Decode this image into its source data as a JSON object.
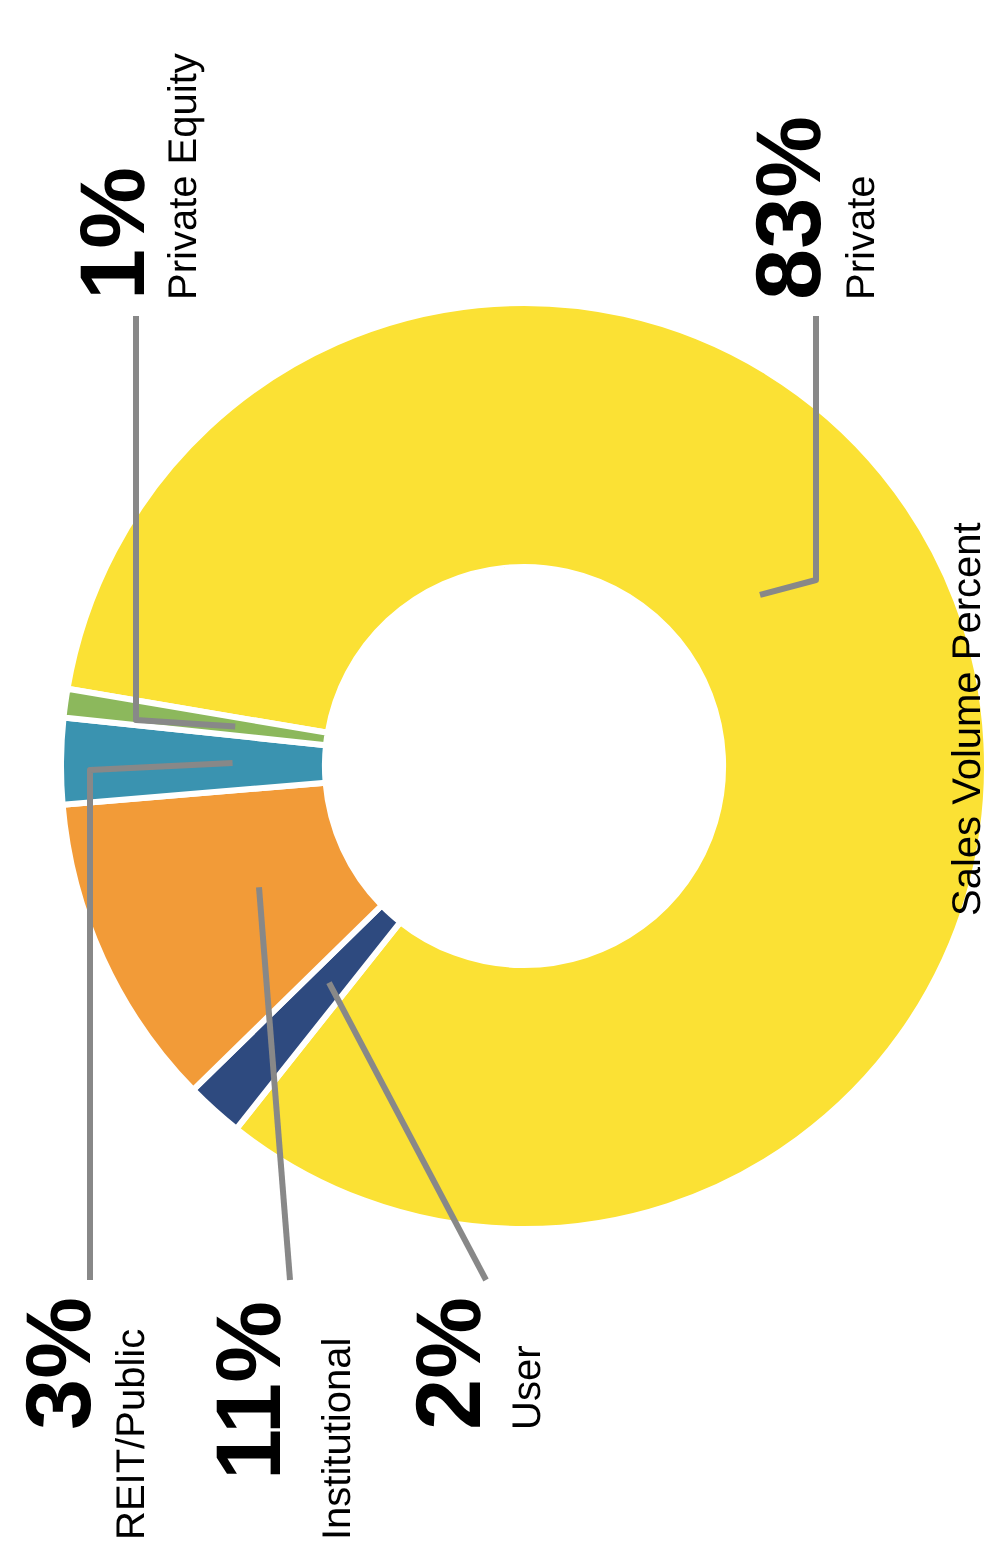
{
  "chart_data": {
    "type": "donut",
    "title": "Sales Volume Percent",
    "categories": [
      "Private",
      "User",
      "Institutional",
      "REIT/Public",
      "Private Equity"
    ],
    "values": [
      83,
      2,
      11,
      3,
      1
    ],
    "value_labels": [
      "83%",
      "2%",
      "11%",
      "3%",
      "1%"
    ],
    "colors": [
      "#fbe134",
      "#2e4a7f",
      "#f29b38",
      "#3a93b0",
      "#8cb85c"
    ],
    "legend": false
  }
}
